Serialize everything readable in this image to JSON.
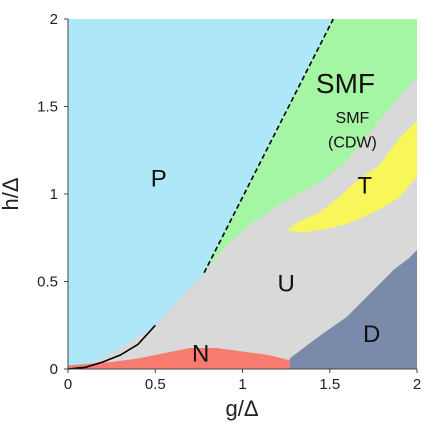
{
  "chart_data": {
    "type": "heatmap",
    "xlabel": "g/Δ",
    "ylabel": "h/Δ",
    "xlim": [
      0,
      2
    ],
    "ylim": [
      0,
      2
    ],
    "xticks": [
      "0",
      "0.5",
      "1",
      "1.5",
      "2"
    ],
    "yticks": [
      "0",
      "0.5",
      "1",
      "1.5",
      "2"
    ],
    "grid": false,
    "colors": {
      "P": "#aee7f7",
      "SMF": "#a4f5a4",
      "SMF (CDW)": "#d9d9d9",
      "T": "#f7f75c",
      "U": "#d9d9d9",
      "D": "#7a8aab",
      "N": "#f87b70"
    },
    "regions": [
      {
        "label": "P",
        "color": "#aee7f7",
        "label_at": [
          0.52,
          1.08
        ],
        "boundary": [
          [
            0,
            0
          ],
          [
            0,
            2
          ],
          [
            1.52,
            2
          ],
          [
            0.78,
            0.55
          ],
          [
            0.5,
            0.25
          ],
          [
            0.3,
            0.12
          ],
          [
            0.15,
            0.04
          ],
          [
            0,
            0
          ]
        ]
      },
      {
        "label": "SMF",
        "color": "#a4f5a4",
        "label_at": [
          1.59,
          1.62
        ],
        "boundary": [
          [
            0.78,
            0.55
          ],
          [
            1.52,
            2
          ],
          [
            2,
            2
          ],
          [
            2,
            1.67
          ],
          [
            1.92,
            1.58
          ],
          [
            1.75,
            1.38
          ],
          [
            1.6,
            1.19
          ],
          [
            1.45,
            1.07
          ],
          [
            1.32,
            1.0
          ],
          [
            1.2,
            0.93
          ],
          [
            1.05,
            0.83
          ],
          [
            0.9,
            0.7
          ]
        ]
      },
      {
        "label": "T",
        "color": "#f7f75c",
        "label_at": [
          1.7,
          1.04
        ],
        "boundary": [
          [
            1.25,
            0.79
          ],
          [
            1.32,
            0.84
          ],
          [
            1.45,
            0.9
          ],
          [
            1.55,
            0.98
          ],
          [
            1.65,
            1.07
          ],
          [
            1.78,
            1.16
          ],
          [
            1.9,
            1.32
          ],
          [
            2,
            1.42
          ],
          [
            2,
            1.1
          ],
          [
            1.9,
            0.98
          ],
          [
            1.8,
            0.92
          ],
          [
            1.72,
            0.88
          ],
          [
            1.6,
            0.83
          ],
          [
            1.48,
            0.8
          ],
          [
            1.35,
            0.78
          ]
        ]
      },
      {
        "label": "D",
        "color": "#7a8aab",
        "label_at": [
          1.74,
          0.19
        ],
        "boundary": [
          [
            1.27,
            0
          ],
          [
            1.27,
            0.06
          ],
          [
            1.43,
            0.18
          ],
          [
            1.6,
            0.3
          ],
          [
            1.75,
            0.45
          ],
          [
            1.87,
            0.57
          ],
          [
            1.95,
            0.63
          ],
          [
            2,
            0.68
          ],
          [
            2,
            0
          ]
        ]
      },
      {
        "label": "N",
        "color": "#f87b70",
        "label_at": [
          0.76,
          0.08
        ],
        "boundary": [
          [
            0,
            0
          ],
          [
            0,
            0.02
          ],
          [
            0.25,
            0.04
          ],
          [
            0.4,
            0.06
          ],
          [
            0.55,
            0.09
          ],
          [
            0.7,
            0.12
          ],
          [
            0.85,
            0.12
          ],
          [
            1.0,
            0.1
          ],
          [
            1.15,
            0.08
          ],
          [
            1.27,
            0.05
          ],
          [
            1.27,
            0
          ]
        ]
      }
    ],
    "labels": {
      "P": "P",
      "SMF": "SMF",
      "SMF_CDW_line1": "SMF",
      "SMF_CDW_line2": "(CDW)",
      "T": "T",
      "U": "U",
      "D": "D",
      "N": "N"
    },
    "label_positions": {
      "SMF_CDW": [
        1.63,
        1.36
      ],
      "U": [
        1.25,
        0.48
      ]
    },
    "solid_curve": [
      [
        0,
        0
      ],
      [
        0.1,
        0.01
      ],
      [
        0.2,
        0.04
      ],
      [
        0.3,
        0.08
      ],
      [
        0.4,
        0.14
      ],
      [
        0.5,
        0.25
      ]
    ],
    "dashed_line": [
      [
        0.78,
        0.55
      ],
      [
        1.52,
        2
      ]
    ]
  }
}
